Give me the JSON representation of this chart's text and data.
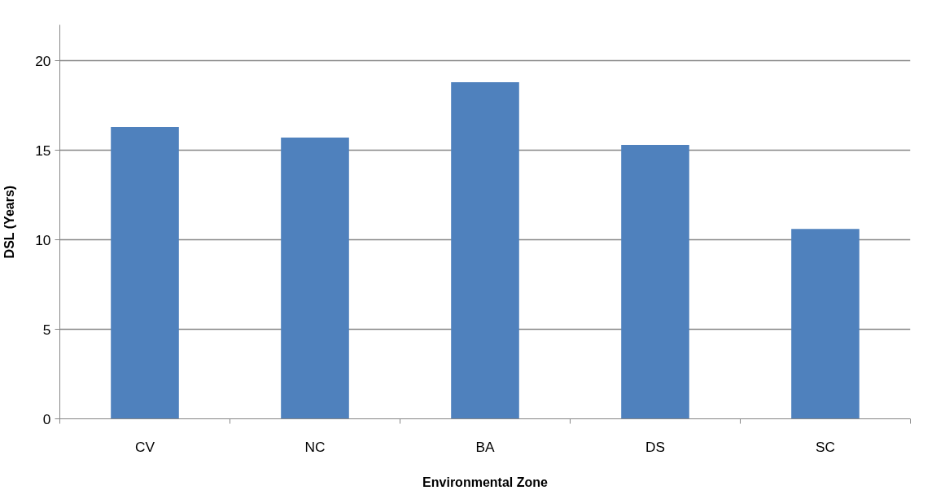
{
  "chart_data": {
    "type": "bar",
    "xlabel": "Environmental Zone",
    "ylabel": "DSL (Years)",
    "categories": [
      "CV",
      "NC",
      "BA",
      "DS",
      "SC"
    ],
    "values": [
      16.3,
      15.7,
      18.8,
      15.3,
      10.6
    ],
    "color": "#4f81bd",
    "ylim": [
      0,
      22
    ],
    "yticks": [
      0,
      5,
      10,
      15,
      20
    ],
    "grid": "y"
  }
}
